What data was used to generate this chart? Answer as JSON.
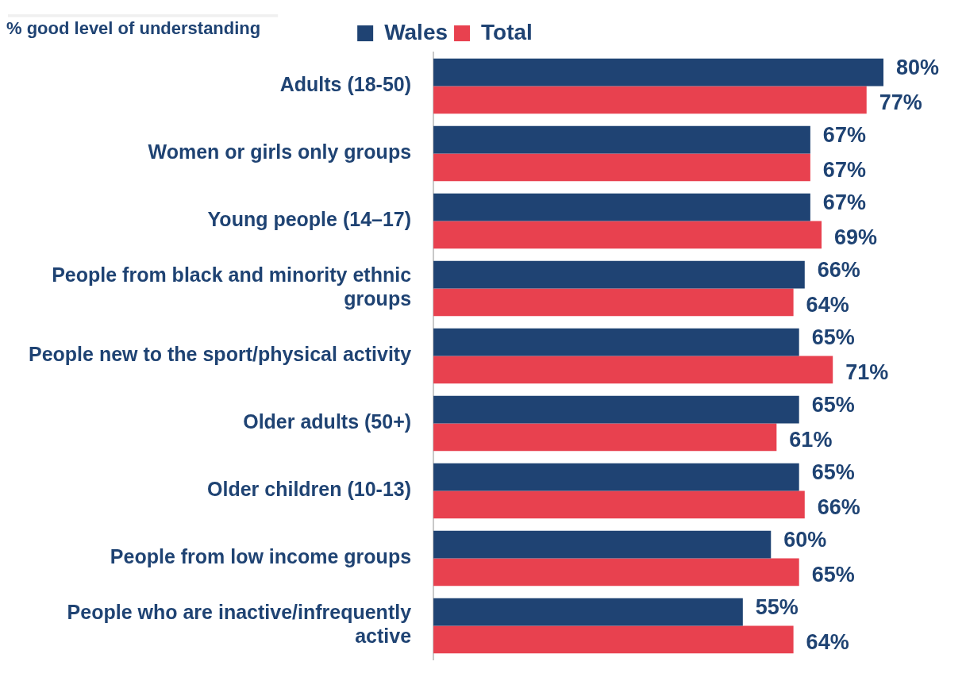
{
  "chart_data": {
    "type": "bar",
    "orientation": "horizontal",
    "title": "% good level of understanding",
    "categories": [
      "Adults (18-50)",
      "Women or girls only groups",
      "Young people (14–17)",
      "People from black and minority ethnic groups",
      "People new to the sport/physical activity",
      "Older adults (50+)",
      "Older children (10-13)",
      "People from low income groups",
      "People who are inactive/infrequently active"
    ],
    "series": [
      {
        "name": "Wales",
        "color": "#1f4373",
        "values": [
          80,
          67,
          67,
          66,
          65,
          65,
          65,
          60,
          55
        ],
        "value_labels": [
          "80%",
          "67%",
          "67%",
          "66%",
          "65%",
          "65%",
          "65%",
          "60%",
          "55%"
        ]
      },
      {
        "name": "Total",
        "color": "#e8414f",
        "values": [
          77,
          67,
          69,
          64,
          71,
          61,
          66,
          65,
          64
        ],
        "value_labels": [
          "77%",
          "67%",
          "69%",
          "64%",
          "71%",
          "61%",
          "66%",
          "65%",
          "64%"
        ]
      }
    ],
    "legend": "top"
  }
}
